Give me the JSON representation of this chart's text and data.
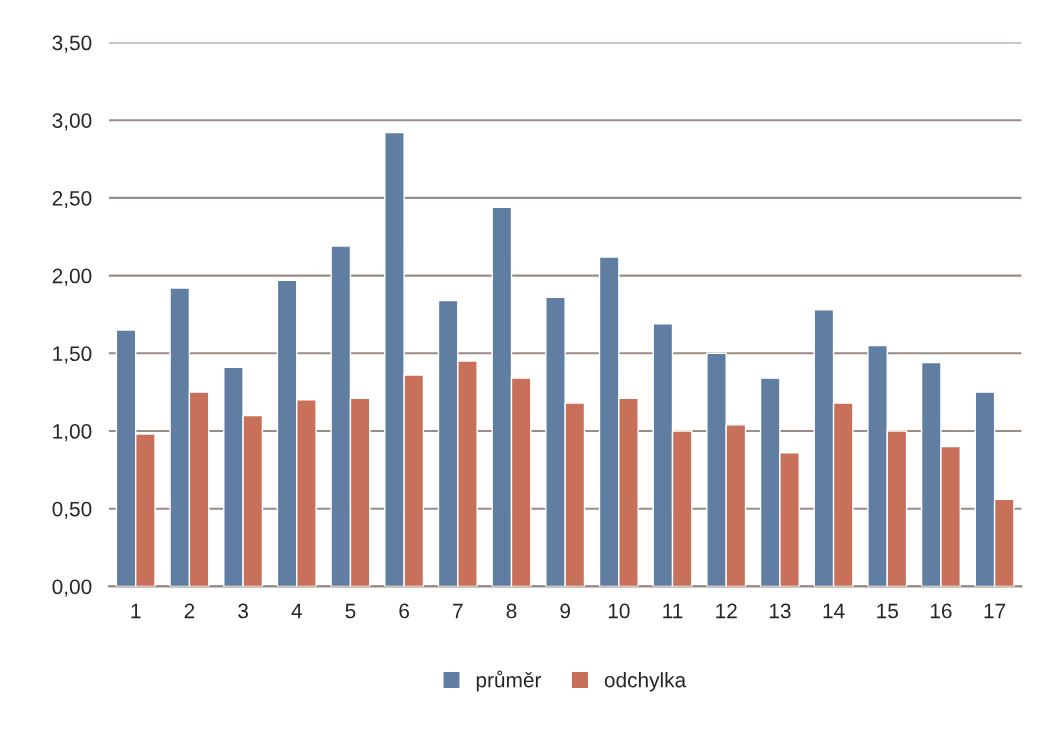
{
  "chart_data": {
    "type": "bar",
    "categories": [
      "1",
      "2",
      "3",
      "4",
      "5",
      "6",
      "7",
      "8",
      "9",
      "10",
      "11",
      "12",
      "13",
      "14",
      "15",
      "16",
      "17"
    ],
    "series": [
      {
        "name": "průměr",
        "color": "#5f7ea2",
        "values": [
          1.65,
          1.92,
          1.41,
          1.97,
          2.19,
          2.92,
          1.84,
          2.44,
          1.86,
          2.12,
          1.69,
          1.5,
          1.34,
          1.78,
          1.55,
          1.44,
          1.25
        ]
      },
      {
        "name": "odchylka",
        "color": "#c8705a",
        "values": [
          0.98,
          1.25,
          1.1,
          1.2,
          1.21,
          1.36,
          1.45,
          1.34,
          1.18,
          1.21,
          1.0,
          1.04,
          0.86,
          1.18,
          1.0,
          0.9,
          0.56
        ]
      }
    ],
    "ylim": [
      0,
      3.5
    ],
    "yticks": [
      {
        "value": 0,
        "label": "0,00"
      },
      {
        "value": 0.5,
        "label": "0,50"
      },
      {
        "value": 1,
        "label": "1,00"
      },
      {
        "value": 1.5,
        "label": "1,50"
      },
      {
        "value": 2,
        "label": "2,00"
      },
      {
        "value": 2.5,
        "label": "2,50"
      },
      {
        "value": 3,
        "label": "3,00"
      },
      {
        "value": 3.5,
        "label": "3,50"
      }
    ],
    "grid": "y",
    "legend": "bottom"
  }
}
